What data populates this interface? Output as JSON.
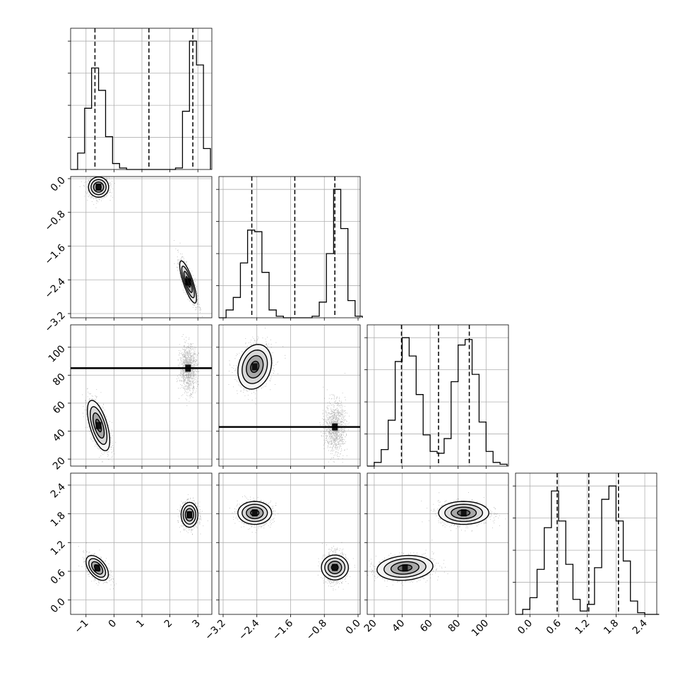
{
  "chart_data": {
    "type": "corner",
    "parameters": [
      {
        "range": [
          -1.55,
          3.5
        ],
        "ticks": [
          -1,
          0,
          1,
          2,
          3
        ],
        "tick_labels": [
          "−1",
          "0",
          "1",
          "2",
          "3"
        ]
      },
      {
        "range": [
          -3.3,
          0.05
        ],
        "ticks": [
          -3.2,
          -2.4,
          -1.6,
          -0.8,
          0.0
        ],
        "tick_labels": [
          "−3.2",
          "−2.4",
          "−1.6",
          "−0.8",
          "0.0"
        ]
      },
      {
        "range": [
          15,
          116
        ],
        "ticks": [
          20,
          40,
          60,
          80,
          100
        ],
        "tick_labels": [
          "20",
          "40",
          "60",
          "80",
          "100"
        ]
      },
      {
        "range": [
          -0.3,
          2.65
        ],
        "ticks": [
          0.0,
          0.6,
          1.2,
          1.8,
          2.4
        ],
        "tick_labels": [
          "0.0",
          "0.6",
          "1.2",
          "1.8",
          "2.4"
        ]
      }
    ],
    "histograms": [
      {
        "param": 0,
        "quantiles": [
          -0.68,
          1.25,
          2.82
        ],
        "bin_edges": [
          -1.55,
          -1.3,
          -1.05,
          -0.8,
          -0.55,
          -0.3,
          -0.05,
          0.2,
          0.45,
          0.7,
          0.95,
          1.2,
          1.45,
          1.7,
          1.95,
          2.2,
          2.45,
          2.7,
          2.95,
          3.2,
          3.45
        ],
        "counts": [
          0,
          11,
          41,
          68,
          53,
          22,
          4,
          1,
          0,
          0,
          0,
          0,
          0,
          0,
          0,
          1,
          39,
          86,
          70,
          14
        ]
      },
      {
        "param": 1,
        "quantiles": [
          -2.52,
          -1.5,
          -0.55
        ],
        "bin_edges": [
          -3.3,
          -3.13,
          -2.96,
          -2.79,
          -2.62,
          -2.45,
          -2.28,
          -2.11,
          -1.94,
          -1.77,
          -1.6,
          -1.43,
          -1.26,
          -1.09,
          -0.92,
          -0.75,
          -0.58,
          -0.41,
          -0.24,
          -0.07,
          0.1
        ],
        "counts": [
          0,
          5,
          13,
          35,
          56,
          55,
          29,
          5,
          1,
          0,
          0,
          0,
          0,
          1,
          10,
          41,
          82,
          57,
          11,
          1
        ]
      },
      {
        "param": 2,
        "quantiles": [
          39.5,
          66,
          88
        ],
        "bin_edges": [
          15,
          20,
          25,
          30,
          35,
          40,
          45,
          50,
          55,
          60,
          65,
          70,
          75,
          80,
          85,
          90,
          95,
          100,
          105,
          110,
          115
        ],
        "counts": [
          0,
          2,
          9,
          25,
          57,
          70,
          60,
          39,
          17,
          8,
          7,
          15,
          46,
          66,
          69,
          50,
          24,
          8,
          2,
          1
        ]
      },
      {
        "param": 3,
        "quantiles": [
          0.57,
          1.23,
          1.85
        ],
        "bin_edges": [
          -0.3,
          -0.15,
          0.0,
          0.15,
          0.3,
          0.45,
          0.6,
          0.75,
          0.9,
          1.05,
          1.2,
          1.35,
          1.5,
          1.65,
          1.8,
          1.95,
          2.1,
          2.25,
          2.4,
          2.55,
          2.7
        ],
        "counts": [
          0,
          3,
          10,
          27,
          52,
          74,
          56,
          30,
          9,
          2,
          6,
          28,
          69,
          77,
          56,
          32,
          8,
          1,
          0,
          0
        ]
      }
    ],
    "scatter_2d": [
      {
        "x_param": 0,
        "y_param": 1,
        "clusters": [
          {
            "center": [
              -0.55,
              -0.2
            ],
            "spread": [
              0.18,
              0.12
            ],
            "rho": 0.0
          },
          {
            "center": [
              2.65,
              -2.45
            ],
            "spread": [
              0.15,
              0.25
            ],
            "rho": -0.8
          }
        ]
      },
      {
        "x_param": 0,
        "y_param": 2,
        "clusters": [
          {
            "center": [
              -0.55,
              44
            ],
            "spread": [
              0.2,
              9
            ],
            "rho": -0.6
          },
          {
            "center": [
              2.65,
              85
            ],
            "spread": [
              0.15,
              8
            ],
            "rho": 0.0
          }
        ]
      },
      {
        "x_param": 1,
        "y_param": 2,
        "clusters": [
          {
            "center": [
              -2.45,
              86
            ],
            "spread": [
              0.2,
              8
            ],
            "rho": 0.2
          },
          {
            "center": [
              -0.55,
              43
            ],
            "spread": [
              0.12,
              9
            ],
            "rho": 0.0
          }
        ]
      },
      {
        "x_param": 0,
        "y_param": 3,
        "clusters": [
          {
            "center": [
              -0.6,
              0.67
            ],
            "spread": [
              0.2,
              0.13
            ],
            "rho": -0.5
          },
          {
            "center": [
              2.7,
              1.78
            ],
            "spread": [
              0.15,
              0.13
            ],
            "rho": 0.0
          }
        ]
      },
      {
        "x_param": 1,
        "y_param": 3,
        "clusters": [
          {
            "center": [
              -2.45,
              1.82
            ],
            "spread": [
              0.2,
              0.12
            ],
            "rho": 0.0
          },
          {
            "center": [
              -0.55,
              0.68
            ],
            "spread": [
              0.13,
              0.16
            ],
            "rho": 0.0
          }
        ]
      },
      {
        "x_param": 2,
        "y_param": 3,
        "clusters": [
          {
            "center": [
              42,
              0.67
            ],
            "spread": [
              10,
              0.13
            ],
            "rho": 0.15
          },
          {
            "center": [
              84,
              1.82
            ],
            "spread": [
              9,
              0.12
            ],
            "rho": 0.0
          }
        ]
      }
    ],
    "contour_levels_sigma": [
      0.5,
      1.0,
      1.5,
      2.0
    ],
    "grid": true,
    "xlabel": "",
    "ylabel": "",
    "title": ""
  }
}
